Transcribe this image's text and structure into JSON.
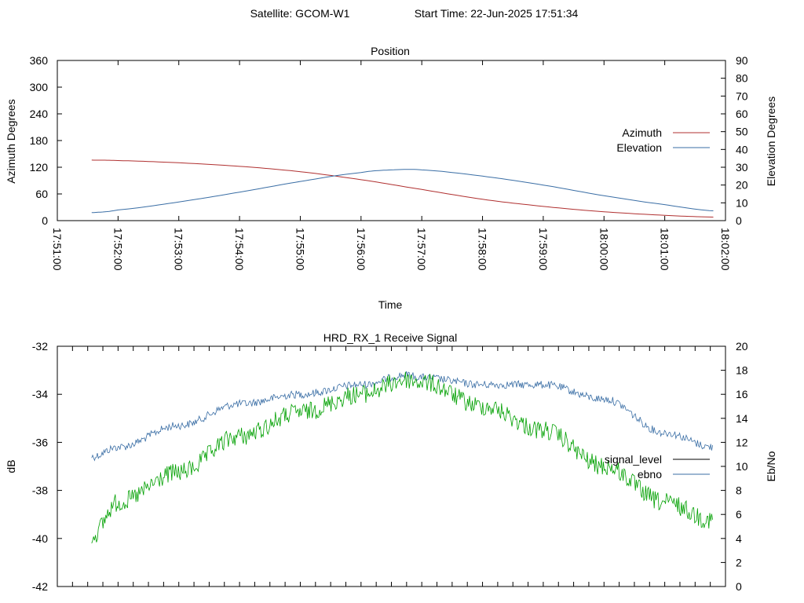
{
  "header": {
    "satellite": "Satellite: GCOM-W1",
    "start_time": "Start Time: 22-Jun-2025 17:51:34"
  },
  "colors": {
    "azimuth": "#b03030",
    "elevation": "#3a6ea5",
    "signal_level": "#000000",
    "ebno_legend": "#3a6ea5",
    "signal_trace": "#3a6ea5",
    "ebno_trace": "#00a000"
  },
  "chart_data": [
    {
      "type": "line",
      "title": "Position",
      "xlabel": "Time",
      "ylabel": "Azimuth Degrees",
      "y2label": "Elevation Degrees",
      "xlim": [
        "17:51:00",
        "18:02:00"
      ],
      "ylim": [
        0,
        360
      ],
      "y2lim": [
        0,
        90
      ],
      "x_ticks": [
        "17:51:00",
        "17:52:00",
        "17:53:00",
        "17:54:00",
        "17:55:00",
        "17:56:00",
        "17:57:00",
        "17:58:00",
        "17:59:00",
        "18:00:00",
        "18:01:00",
        "18:02:00"
      ],
      "y_ticks": [
        0,
        60,
        120,
        180,
        240,
        300,
        360
      ],
      "y2_ticks": [
        0,
        10,
        20,
        30,
        40,
        50,
        60,
        70,
        80,
        90
      ],
      "legend_position": "right",
      "grid": false,
      "series": [
        {
          "name": "Azimuth",
          "axis": "y",
          "x": [
            "17:51:34",
            "17:52:00",
            "17:53:00",
            "17:54:00",
            "17:55:00",
            "17:56:00",
            "17:57:00",
            "17:58:00",
            "17:59:00",
            "18:00:00",
            "18:01:00",
            "18:01:48"
          ],
          "values": [
            136,
            135,
            130,
            122,
            110,
            92,
            70,
            48,
            32,
            20,
            12,
            8
          ]
        },
        {
          "name": "Elevation",
          "axis": "y2",
          "x": [
            "17:51:34",
            "17:52:00",
            "17:53:00",
            "17:54:00",
            "17:55:00",
            "17:56:00",
            "17:56:30",
            "17:57:00",
            "17:58:00",
            "17:59:00",
            "18:00:00",
            "18:01:00",
            "18:01:48"
          ],
          "values": [
            4.5,
            6,
            10.5,
            16,
            22,
            27,
            28.5,
            28.5,
            25,
            20,
            14,
            9,
            5.5
          ]
        }
      ]
    },
    {
      "type": "line",
      "title": "HRD_RX_1 Receive Signal",
      "ylabel": "dB",
      "y2label": "Eb/No",
      "ylim": [
        -42,
        -32
      ],
      "y2lim": [
        0,
        20
      ],
      "y_ticks": [
        -42,
        -40,
        -38,
        -36,
        -34,
        -32
      ],
      "y2_ticks": [
        0,
        2,
        4,
        6,
        8,
        10,
        12,
        14,
        16,
        18,
        20
      ],
      "legend_position": "right",
      "grid": false,
      "x_start": "17:51:34",
      "x_end": "18:01:48",
      "series": [
        {
          "name": "signal_level",
          "axis": "y",
          "x": [
            "17:51:34",
            "17:52:00",
            "17:53:00",
            "17:54:00",
            "17:55:00",
            "17:56:00",
            "17:56:45",
            "17:57:00",
            "17:58:00",
            "17:59:00",
            "18:00:00",
            "18:01:00",
            "18:01:48"
          ],
          "values": [
            -36.6,
            -36.2,
            -35.3,
            -34.4,
            -34.0,
            -33.6,
            -33.2,
            -33.3,
            -33.6,
            -33.6,
            -34.2,
            -35.6,
            -36.2
          ]
        },
        {
          "name": "ebno",
          "axis": "y2",
          "x": [
            "17:51:34",
            "17:52:00",
            "17:53:00",
            "17:54:00",
            "17:55:00",
            "17:56:00",
            "17:56:45",
            "17:57:00",
            "17:58:00",
            "17:59:00",
            "18:00:00",
            "18:01:00",
            "18:01:48"
          ],
          "values": [
            4.2,
            7.0,
            9.5,
            12.5,
            14.5,
            16.0,
            17.2,
            17.0,
            15.0,
            13.0,
            10.0,
            7.0,
            5.5
          ]
        }
      ]
    }
  ]
}
